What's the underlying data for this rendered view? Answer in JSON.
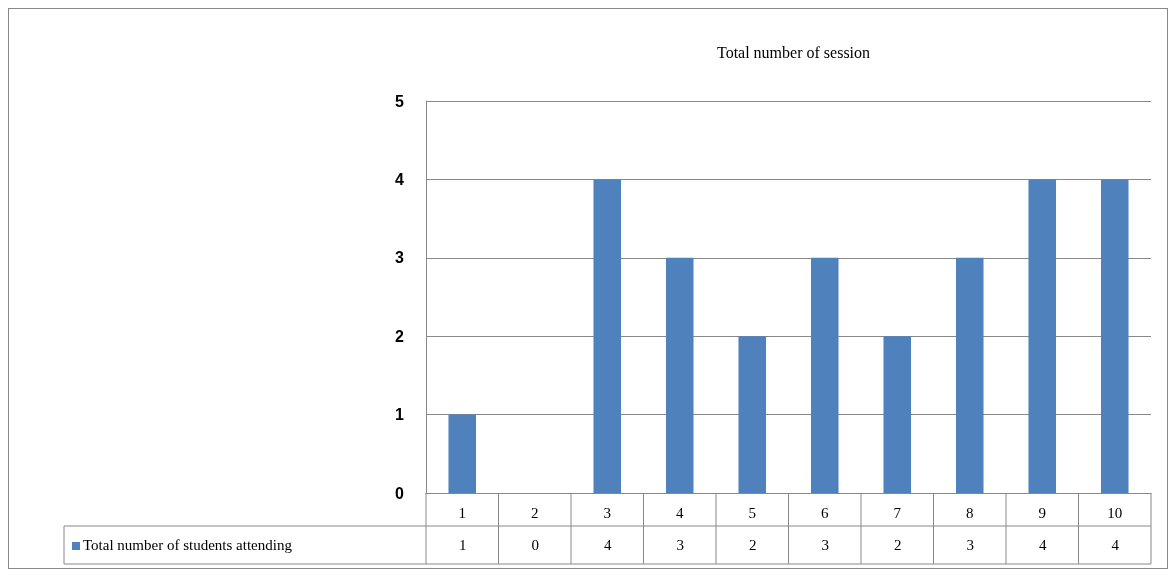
{
  "chart_data": {
    "type": "bar",
    "title": "Total number of session",
    "categories": [
      "1",
      "2",
      "3",
      "4",
      "5",
      "6",
      "7",
      "8",
      "9",
      "10"
    ],
    "series": [
      {
        "name": "Total number of students attending",
        "color": "#4f81bd",
        "values": [
          1,
          0,
          4,
          3,
          2,
          3,
          2,
          3,
          4,
          4
        ]
      }
    ],
    "ylim": [
      0,
      5
    ],
    "yticks": [
      0,
      1,
      2,
      3,
      4,
      5
    ],
    "grid": "y",
    "data_labels": true
  }
}
